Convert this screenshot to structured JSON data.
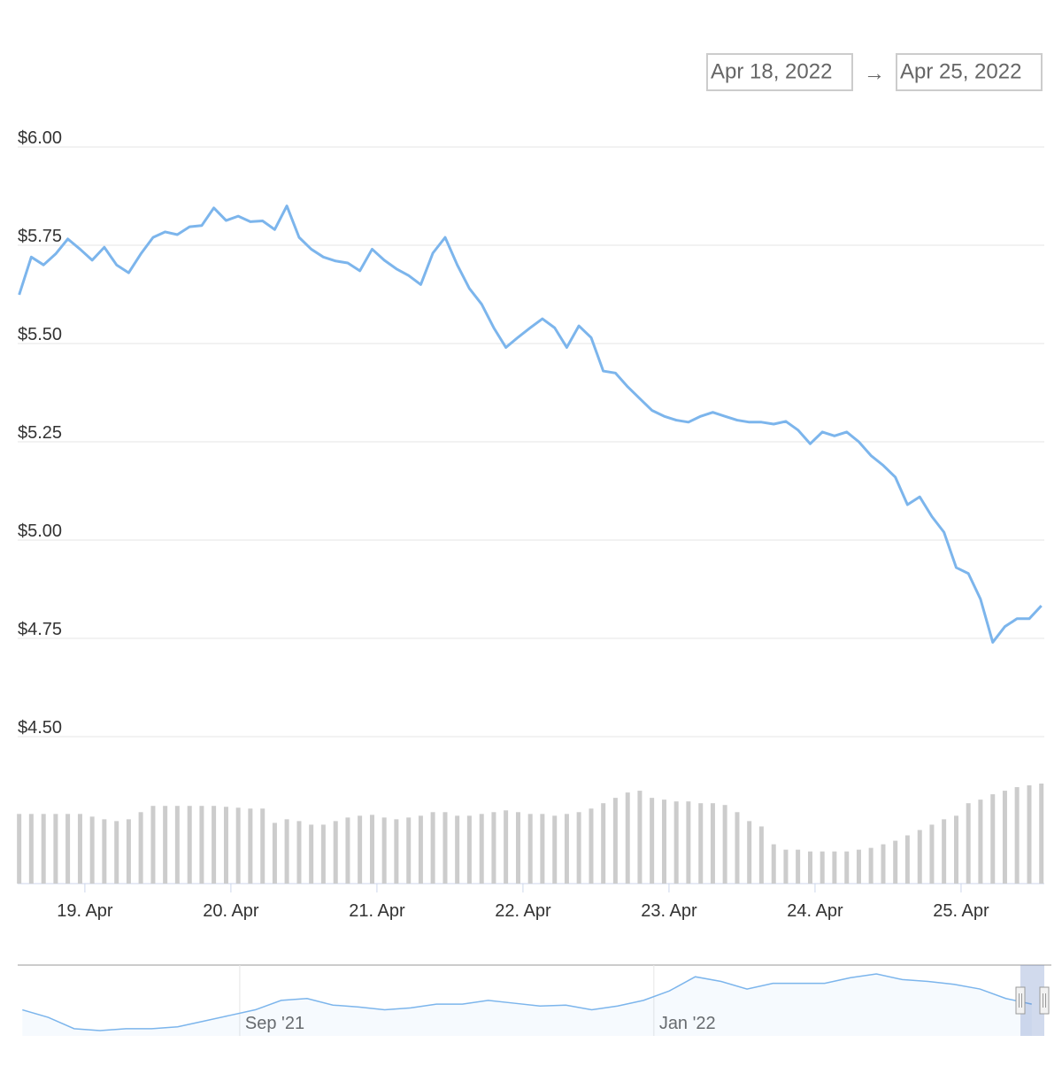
{
  "date_range": {
    "from": "Apr 18, 2022",
    "separator": "→",
    "to": "Apr 25, 2022"
  },
  "chart_data": [
    {
      "type": "line",
      "x": [
        18.55,
        18.633,
        18.717,
        18.8,
        18.883,
        18.967,
        19.05,
        19.133,
        19.217,
        19.3,
        19.383,
        19.467,
        19.55,
        19.633,
        19.717,
        19.8,
        19.883,
        19.967,
        20.05,
        20.133,
        20.217,
        20.3,
        20.383,
        20.467,
        20.55,
        20.633,
        20.717,
        20.8,
        20.883,
        20.967,
        21.05,
        21.133,
        21.217,
        21.3,
        21.383,
        21.467,
        21.55,
        21.633,
        21.717,
        21.8,
        21.883,
        21.967,
        22.05,
        22.133,
        22.217,
        22.3,
        22.383,
        22.467,
        22.55,
        22.633,
        22.717,
        22.8,
        22.883,
        22.967,
        23.05,
        23.133,
        23.217,
        23.3,
        23.383,
        23.467,
        23.55,
        23.633,
        23.717,
        23.8,
        23.883,
        23.967,
        24.05,
        24.133,
        24.217,
        24.3,
        24.383,
        24.467,
        24.55,
        24.633,
        24.717,
        24.8,
        24.883,
        24.967,
        25.05,
        25.133,
        25.217,
        25.3,
        25.383,
        25.467,
        25.55
      ],
      "series": [
        {
          "type": "line",
          "color": "#7cb5ec",
          "values": [
            5.624,
            5.72,
            5.7,
            5.728,
            5.766,
            5.74,
            5.712,
            5.745,
            5.7,
            5.68,
            5.728,
            5.77,
            5.784,
            5.777,
            5.797,
            5.8,
            5.845,
            5.813,
            5.824,
            5.81,
            5.812,
            5.79,
            5.85,
            5.77,
            5.74,
            5.72,
            5.71,
            5.705,
            5.685,
            5.74,
            5.712,
            5.69,
            5.673,
            5.65,
            5.73,
            5.77,
            5.7,
            5.64,
            5.6,
            5.54,
            5.49,
            5.516,
            5.54,
            5.563,
            5.54,
            5.49,
            5.545,
            5.515,
            5.43,
            5.425,
            5.39,
            5.36,
            5.33,
            5.315,
            5.305,
            5.3,
            5.315,
            5.325,
            5.315,
            5.305,
            5.3,
            5.3,
            5.295,
            5.302,
            5.28,
            5.245,
            5.275,
            5.265,
            5.275,
            5.25,
            5.215,
            5.19,
            5.16,
            5.09,
            5.11,
            5.06,
            5.02,
            4.93,
            4.915,
            4.85,
            4.74,
            4.78,
            4.8,
            4.8,
            4.833
          ]
        },
        {
          "type": "bar",
          "color": "#cccccc",
          "values": [
            78,
            78,
            78,
            78,
            78,
            78,
            75,
            72,
            70,
            72,
            80,
            87,
            87,
            87,
            87,
            87,
            87,
            86,
            85,
            84,
            84,
            68,
            72,
            70,
            66,
            66,
            70,
            74,
            76,
            77,
            74,
            72,
            74,
            76,
            80,
            80,
            76,
            76,
            78,
            80,
            82,
            80,
            78,
            78,
            76,
            78,
            80,
            84,
            90,
            96,
            102,
            104,
            96,
            94,
            92,
            92,
            90,
            90,
            88,
            80,
            70,
            64,
            44,
            38,
            38,
            36,
            36,
            36,
            36,
            38,
            40,
            44,
            48,
            54,
            60,
            66,
            72,
            76,
            90,
            94,
            100,
            104,
            108,
            110,
            112
          ]
        }
      ],
      "xlim": [
        18.54,
        25.57
      ],
      "xticks": [
        {
          "value": 19,
          "label": "19. Apr"
        },
        {
          "value": 20,
          "label": "20. Apr"
        },
        {
          "value": 21,
          "label": "21. Apr"
        },
        {
          "value": 22,
          "label": "22. Apr"
        },
        {
          "value": 23,
          "label": "23. Apr"
        },
        {
          "value": 24,
          "label": "24. Apr"
        },
        {
          "value": 25,
          "label": "25. Apr"
        }
      ],
      "ylim": [
        4.5,
        6.0
      ],
      "yticks": [
        {
          "value": 4.5,
          "label": "$4.50"
        },
        {
          "value": 4.75,
          "label": "$4.75"
        },
        {
          "value": 5,
          "label": "$5.00"
        },
        {
          "value": 5.25,
          "label": "$5.25"
        },
        {
          "value": 5.5,
          "label": "$5.50"
        },
        {
          "value": 5.75,
          "label": "$5.75"
        },
        {
          "value": 6,
          "label": "$6.00"
        }
      ],
      "grid": true
    },
    {
      "type": "line",
      "color": "#7cb5ec",
      "x": [
        6.9,
        7.15,
        7.4,
        7.65,
        7.9,
        8.15,
        8.4,
        8.65,
        8.9,
        9.15,
        9.4,
        9.65,
        9.9,
        10.15,
        10.4,
        10.65,
        10.9,
        11.15,
        11.4,
        11.65,
        11.9,
        12.15,
        12.4,
        12.65,
        12.9,
        13.15,
        13.4,
        13.65,
        13.9,
        14.15,
        14.4,
        14.65,
        14.9,
        15.15,
        15.4,
        15.65,
        15.9,
        16.15,
        16.4,
        16.65
      ],
      "values": [
        28,
        20,
        8,
        6,
        8,
        8,
        10,
        16,
        22,
        28,
        38,
        40,
        33,
        31,
        28,
        30,
        34,
        34,
        38,
        35,
        32,
        33,
        28,
        32,
        38,
        48,
        63,
        58,
        50,
        56,
        56,
        56,
        62,
        66,
        60,
        58,
        55,
        50,
        40,
        34
      ],
      "xlim": [
        6.855,
        16.84
      ],
      "xticks": [
        {
          "value": 9,
          "label": "Sep '21"
        },
        {
          "value": 13,
          "label": "Jan '22"
        }
      ]
    }
  ]
}
